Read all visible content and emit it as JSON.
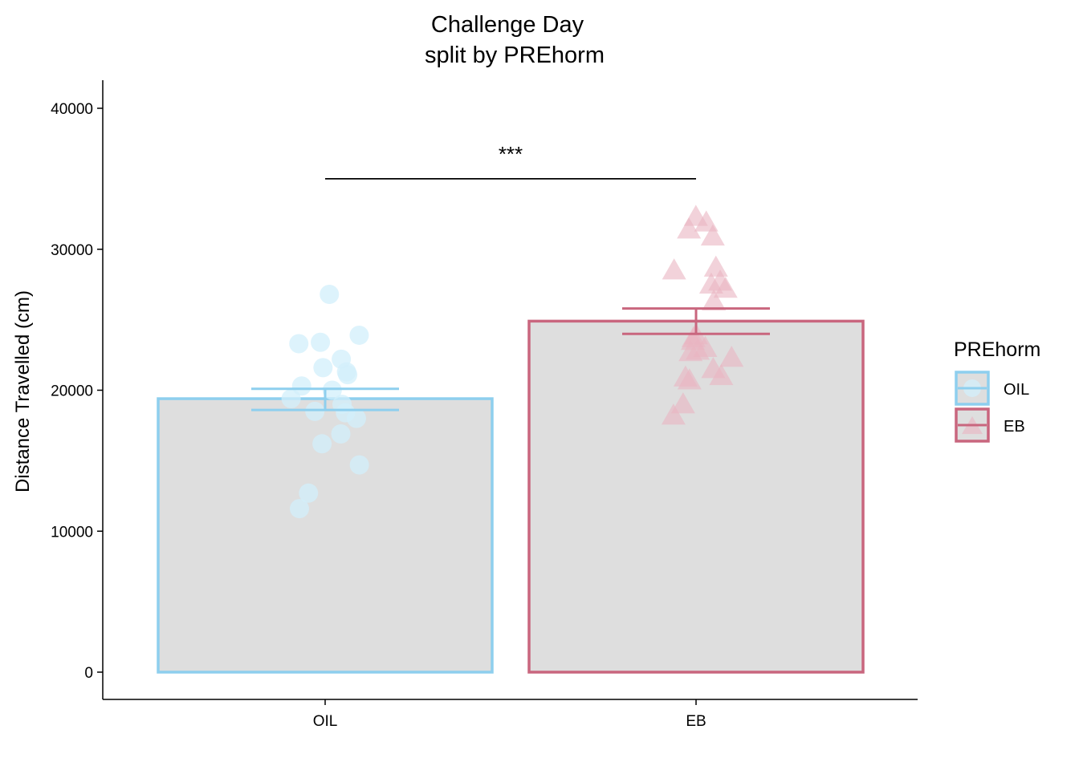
{
  "chart_data": {
    "type": "bar",
    "title": "Challenge Day",
    "subtitle": "split by PREhorm",
    "xlabel": "",
    "ylabel": "Distance Travelled (cm)",
    "categories": [
      "OIL",
      "EB"
    ],
    "values": [
      19400,
      24900
    ],
    "error_bars": [
      {
        "category": "OIL",
        "low": 18600,
        "high": 20100
      },
      {
        "category": "EB",
        "low": 24000,
        "high": 25800
      }
    ],
    "ylim": [
      -1900,
      42000
    ],
    "yticks": [
      0,
      10000,
      20000,
      30000,
      40000
    ],
    "ytick_labels": [
      "0",
      "10000",
      "20000",
      "30000",
      "40000"
    ],
    "points": [
      {
        "category": "OIL",
        "values": [
          26800,
          23900,
          23400,
          23300,
          22200,
          21600,
          21300,
          21100,
          20300,
          20000,
          19400,
          19000,
          18500,
          18400,
          18000,
          16900,
          16200,
          14700,
          12700,
          11600
        ]
      },
      {
        "category": "EB",
        "values": [
          32300,
          31900,
          31400,
          30900,
          28700,
          28500,
          27700,
          27500,
          27200,
          26300,
          23900,
          23700,
          23500,
          23000,
          22800,
          22700,
          22300,
          21500,
          21000,
          20700,
          20900,
          19000,
          18200
        ]
      }
    ],
    "significance": {
      "label": "***",
      "y": 35000,
      "from": "OIL",
      "to": "EB"
    },
    "grid": false,
    "legend": {
      "title": "PREhorm",
      "position": "right",
      "entries": [
        {
          "label": "OIL",
          "color": "#8ecfee",
          "shape": "circle"
        },
        {
          "label": "EB",
          "color": "#c9667e",
          "shape": "triangle"
        }
      ]
    },
    "colors": {
      "OIL": "#8ecfee",
      "EB": "#c9667e",
      "bar_fill": "#dedede",
      "oil_point": "#d2effb",
      "eb_point": "#e9b4c1"
    }
  }
}
